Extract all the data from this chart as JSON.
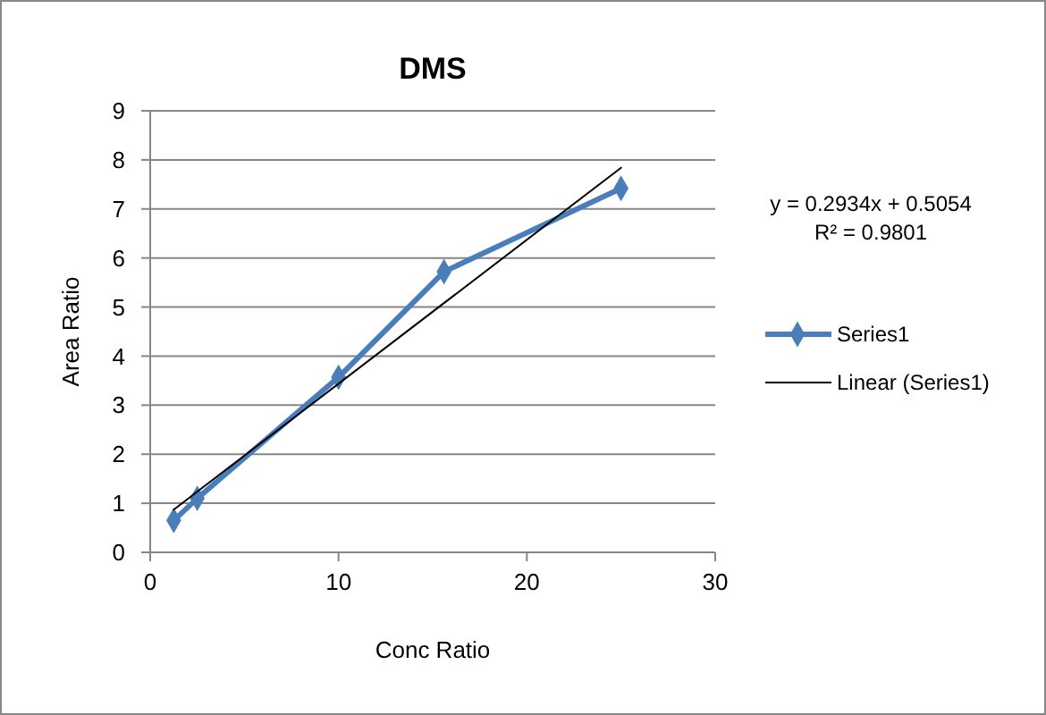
{
  "chart_data": {
    "type": "line",
    "title": "DMS",
    "xlabel": "Conc Ratio",
    "ylabel": "Area Ratio",
    "xlim": [
      0,
      30
    ],
    "xticks": [
      0,
      10,
      20,
      30
    ],
    "ylim": [
      0,
      9
    ],
    "yticks": [
      0,
      1,
      2,
      3,
      4,
      5,
      6,
      7,
      8,
      9
    ],
    "grid": "y",
    "legend": "right",
    "annotations": [
      "y = 0.2934x + 0.5054",
      "R² = 0.9801"
    ],
    "series": [
      {
        "name": "Series1",
        "color": "#4a7ebb",
        "marker": "diamond",
        "x": [
          1.25,
          2.5,
          10,
          15.6,
          25
        ],
        "values": [
          0.65,
          1.1,
          3.57,
          5.72,
          7.42
        ]
      },
      {
        "name": "Linear (Series1)",
        "color": "#000000",
        "marker": "none",
        "x": [
          1.25,
          25
        ],
        "values": [
          0.87,
          7.84
        ]
      }
    ]
  }
}
